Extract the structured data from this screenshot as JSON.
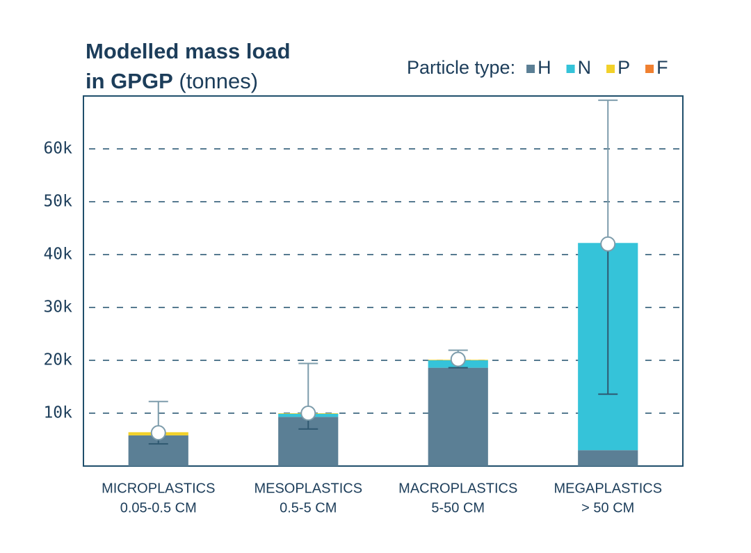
{
  "chart_data": {
    "type": "stacked-bar",
    "title": "Modelled mass load",
    "title_line2": "in GPGP",
    "unit": "(tonnes)",
    "legend_title": "Particle type:",
    "categories": [
      "MICROPLASTICS",
      "MESOPLASTICS",
      "MACROPLASTICS",
      "MEGAPLASTICS"
    ],
    "size_ranges": [
      "0.05-0.5 CM",
      "0.5-5 CM",
      "5-50 CM",
      "> 50 CM"
    ],
    "series": [
      {
        "name": "H",
        "color": "#5b7f95",
        "values": [
          5800,
          9300,
          18600,
          3000
        ]
      },
      {
        "name": "N",
        "color": "#35c3d9",
        "values": [
          0,
          600,
          1400,
          39200
        ]
      },
      {
        "name": "P",
        "color": "#f2d12a",
        "values": [
          600,
          100,
          100,
          0
        ]
      },
      {
        "name": "F",
        "color": "#f08030",
        "values": [
          0,
          0,
          0,
          0
        ]
      }
    ],
    "estimate": {
      "values": [
        6300,
        10000,
        20200,
        42000
      ],
      "low": [
        4200,
        7000,
        18600,
        13600
      ],
      "high": [
        12200,
        19400,
        21900,
        69200
      ]
    },
    "ylim": [
      0,
      70000
    ],
    "yticks": [
      {
        "value": 10000,
        "label": "10k"
      },
      {
        "value": 20000,
        "label": "20k"
      },
      {
        "value": 30000,
        "label": "30k"
      },
      {
        "value": 40000,
        "label": "40k"
      },
      {
        "value": 50000,
        "label": "50k"
      },
      {
        "value": 60000,
        "label": "60k"
      }
    ],
    "grid": true
  }
}
